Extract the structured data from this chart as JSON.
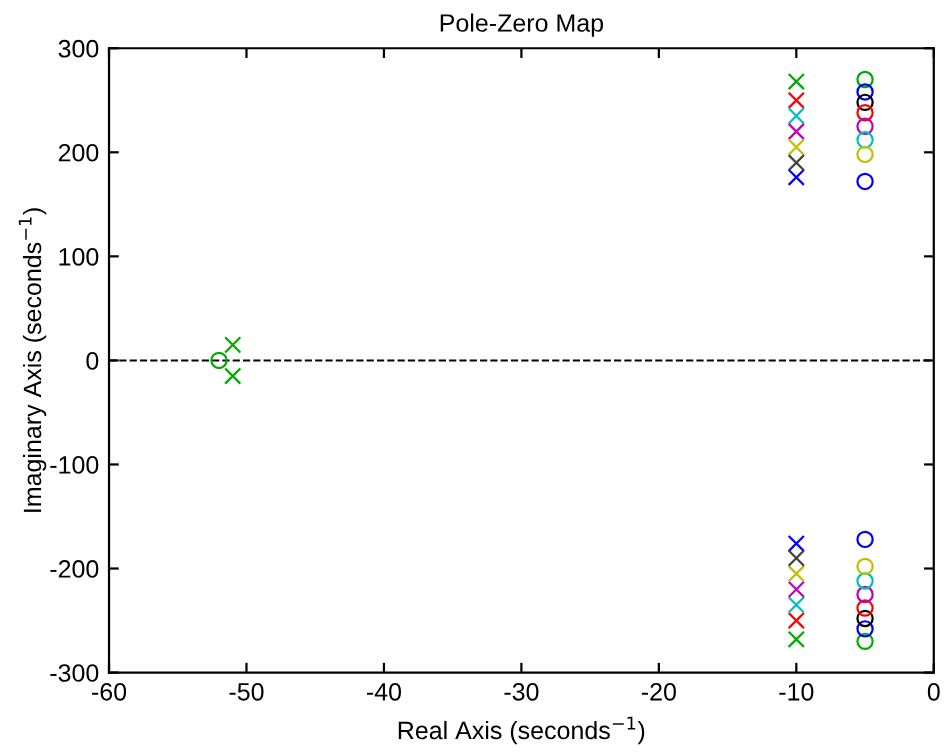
{
  "chart_data": {
    "type": "scatter",
    "title": "Pole-Zero Map",
    "xlabel": "Real Axis (seconds$^{−1}$)",
    "ylabel": "Imaginary Axis (seconds$^{−1}$)",
    "xlim": [
      -60,
      0
    ],
    "xticks": [
      -60,
      -50,
      -40,
      -30,
      -20,
      -10,
      0
    ],
    "ylim": [
      -300,
      300
    ],
    "yticks": [
      -300,
      -200,
      -100,
      0,
      100,
      200,
      300
    ],
    "grid": false,
    "legend": false,
    "ref_lines": [
      {
        "axis": "y",
        "value": 0,
        "color": "#000000",
        "line_style": "dashed"
      }
    ],
    "series": [
      {
        "color": "#00aa00",
        "marker": "cross",
        "x": [
          -10,
          -10,
          -51,
          -51
        ],
        "values": [
          268,
          -268,
          15,
          -15
        ]
      },
      {
        "color": "#0000ff",
        "marker": "cross",
        "x": [
          -10,
          -10
        ],
        "values": [
          176,
          -176
        ]
      },
      {
        "color": "#ff0000",
        "marker": "cross",
        "x": [
          -10,
          -10
        ],
        "values": [
          250,
          -250
        ]
      },
      {
        "color": "#00bfbf",
        "marker": "cross",
        "x": [
          -10,
          -10
        ],
        "values": [
          235,
          -235
        ]
      },
      {
        "color": "#bf00bf",
        "marker": "cross",
        "x": [
          -10,
          -10
        ],
        "values": [
          220,
          -220
        ]
      },
      {
        "color": "#bfbf00",
        "marker": "cross",
        "x": [
          -10,
          -10
        ],
        "values": [
          205,
          -205
        ]
      },
      {
        "color": "#404040",
        "marker": "cross",
        "x": [
          -10,
          -10
        ],
        "values": [
          190,
          -190
        ]
      },
      {
        "color": "#00aa00",
        "marker": "circle",
        "x": [
          -5,
          -5,
          -52
        ],
        "values": [
          270,
          -270,
          0
        ]
      },
      {
        "color": "#0000ff",
        "marker": "circle",
        "x": [
          -5,
          -5
        ],
        "values": [
          258,
          -258
        ]
      },
      {
        "color": "#000000",
        "marker": "circle",
        "x": [
          -5,
          -5
        ],
        "values": [
          248,
          -248
        ]
      },
      {
        "color": "#ff0000",
        "marker": "circle",
        "x": [
          -5,
          -5
        ],
        "values": [
          238,
          -238
        ]
      },
      {
        "color": "#bf00bf",
        "marker": "circle",
        "x": [
          -5,
          -5
        ],
        "values": [
          225,
          -225
        ]
      },
      {
        "color": "#00bfbf",
        "marker": "circle",
        "x": [
          -5,
          -5
        ],
        "values": [
          212,
          -212
        ]
      },
      {
        "color": "#bfbf00",
        "marker": "circle",
        "x": [
          -5,
          -5
        ],
        "values": [
          198,
          -198
        ]
      },
      {
        "color": "#0000ff",
        "marker": "circle",
        "x": [
          -5,
          -5
        ],
        "values": [
          172,
          -172
        ]
      }
    ]
  }
}
